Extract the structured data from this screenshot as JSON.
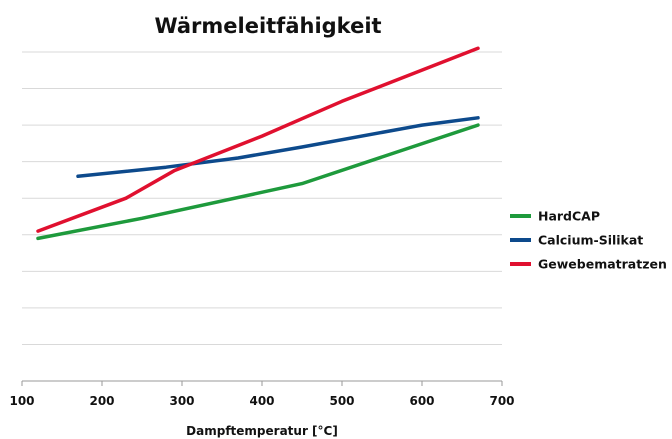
{
  "chart_data": {
    "type": "line",
    "title": "Wärmeleitfähigkeit",
    "xlabel": "Dampftemperatur [°C]",
    "ylabel": "",
    "xlim": [
      100,
      700
    ],
    "x_ticks": [
      100,
      200,
      300,
      400,
      500,
      600,
      700
    ],
    "ylim": [
      0,
      9
    ],
    "y_tick_labels_shown": false,
    "grid": "horizontal",
    "legend_position": "right",
    "series": [
      {
        "name": "HardCAP",
        "color": "#1e9a3c",
        "points": [
          [
            120,
            3.9
          ],
          [
            250,
            4.45
          ],
          [
            450,
            5.4
          ],
          [
            670,
            7.0
          ]
        ]
      },
      {
        "name": "Calcium-Silikat",
        "color": "#0d4a8c",
        "points": [
          [
            170,
            5.6
          ],
          [
            280,
            5.85
          ],
          [
            370,
            6.1
          ],
          [
            450,
            6.4
          ],
          [
            600,
            7.0
          ],
          [
            670,
            7.2
          ]
        ]
      },
      {
        "name": "Gewebematratzen",
        "color": "#e0102f",
        "points": [
          [
            120,
            4.1
          ],
          [
            230,
            5.0
          ],
          [
            290,
            5.75
          ],
          [
            400,
            6.7
          ],
          [
            500,
            7.65
          ],
          [
            670,
            9.1
          ]
        ]
      }
    ]
  }
}
